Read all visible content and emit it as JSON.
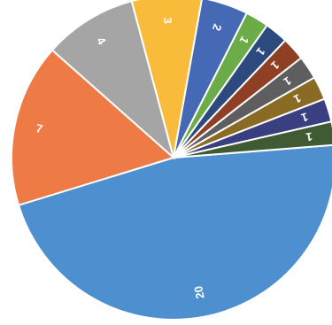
{
  "chart_data": {
    "type": "pie",
    "title": "",
    "values": [
      20,
      7,
      4,
      3,
      2,
      1,
      1,
      1,
      1,
      1,
      1,
      1
    ],
    "data_labels": [
      "20",
      "7",
      "4",
      "3",
      "2",
      "1",
      "1",
      "1",
      "1",
      "1",
      "1",
      "1"
    ],
    "colors": [
      "#4E8FCF",
      "#EE7A45",
      "#A5A5A5",
      "#F9BC3A",
      "#4669B5",
      "#6BAC48",
      "#2D4A7E",
      "#8E3F24",
      "#5E5E5E",
      "#8A6B23",
      "#3A3F82",
      "#405A33"
    ],
    "legend": "none"
  }
}
